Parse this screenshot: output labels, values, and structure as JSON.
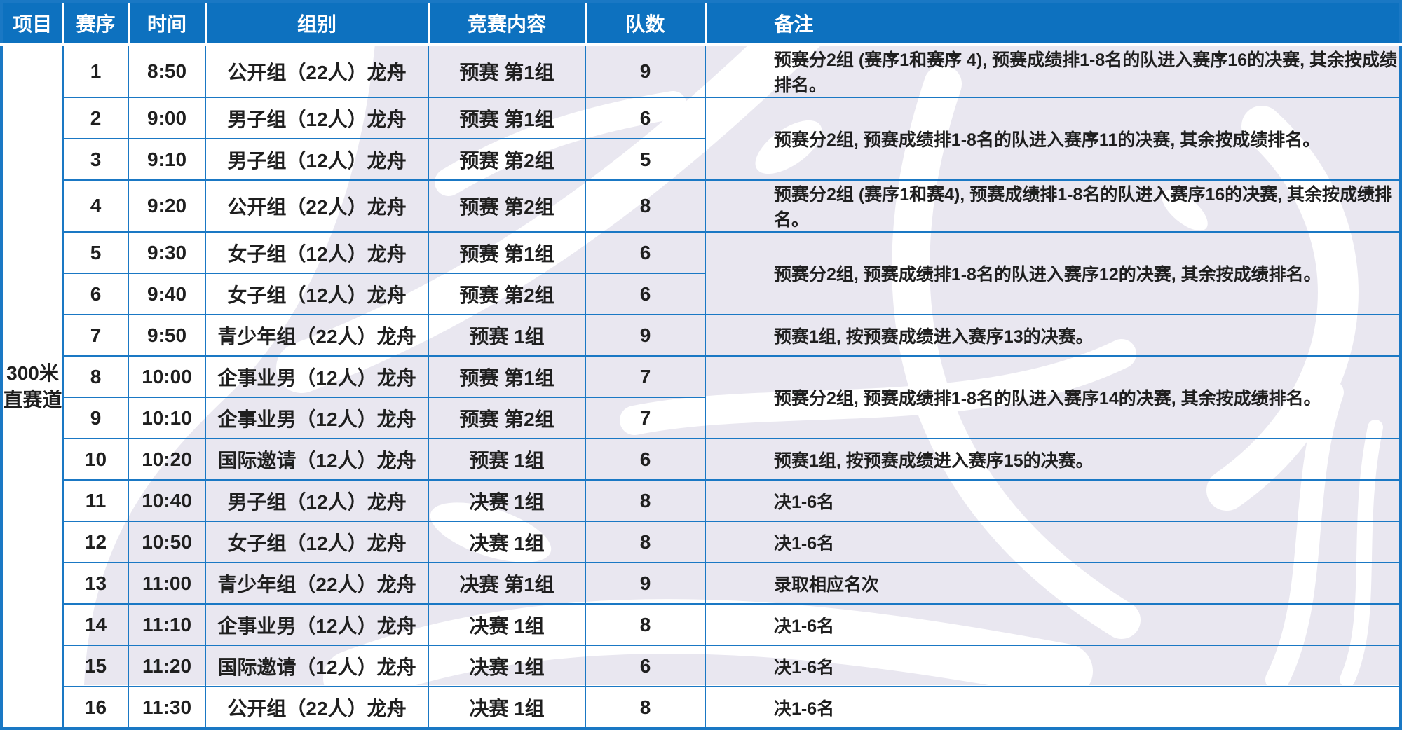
{
  "table": {
    "columns": [
      {
        "label": "项目"
      },
      {
        "label": "赛序"
      },
      {
        "label": "时间"
      },
      {
        "label": "组别"
      },
      {
        "label": "竞赛内容"
      },
      {
        "label": "队数"
      },
      {
        "label": "备注"
      }
    ],
    "project": {
      "line1": "300米",
      "line2": "直赛道"
    },
    "rows": [
      {
        "seq": "1",
        "time": "8:50",
        "group": "公开组（22人）龙舟",
        "content": "预赛 第1组",
        "teams": "9",
        "remark": "预赛分2组 (赛序1和赛序 4), 预赛成绩排1-8名的队进入赛序16的决赛, 其余按成绩排名。",
        "remark_rowspan": 1
      },
      {
        "seq": "2",
        "time": "9:00",
        "group": "男子组（12人）龙舟",
        "content": "预赛 第1组",
        "teams": "6",
        "remark": "预赛分2组, 预赛成绩排1-8名的队进入赛序11的决赛, 其余按成绩排名。",
        "remark_rowspan": 2
      },
      {
        "seq": "3",
        "time": "9:10",
        "group": "男子组（12人）龙舟",
        "content": "预赛 第2组",
        "teams": "5",
        "remark": null
      },
      {
        "seq": "4",
        "time": "9:20",
        "group": "公开组（22人）龙舟",
        "content": "预赛 第2组",
        "teams": "8",
        "remark": "预赛分2组 (赛序1和赛4), 预赛成绩排1-8名的队进入赛序16的决赛, 其余按成绩排名。",
        "remark_rowspan": 1
      },
      {
        "seq": "5",
        "time": "9:30",
        "group": "女子组（12人）龙舟",
        "content": "预赛 第1组",
        "teams": "6",
        "remark": "预赛分2组, 预赛成绩排1-8名的队进入赛序12的决赛, 其余按成绩排名。",
        "remark_rowspan": 2
      },
      {
        "seq": "6",
        "time": "9:40",
        "group": "女子组（12人）龙舟",
        "content": "预赛 第2组",
        "teams": "6",
        "remark": null
      },
      {
        "seq": "7",
        "time": "9:50",
        "group": "青少年组（22人）龙舟",
        "content": "预赛 1组",
        "teams": "9",
        "remark": "预赛1组, 按预赛成绩进入赛序13的决赛。",
        "remark_rowspan": 1
      },
      {
        "seq": "8",
        "time": "10:00",
        "group": "企事业男（12人）龙舟",
        "content": "预赛 第1组",
        "teams": "7",
        "remark": "预赛分2组, 预赛成绩排1-8名的队进入赛序14的决赛, 其余按成绩排名。",
        "remark_rowspan": 2
      },
      {
        "seq": "9",
        "time": "10:10",
        "group": "企事业男（12人）龙舟",
        "content": "预赛 第2组",
        "teams": "7",
        "remark": null
      },
      {
        "seq": "10",
        "time": "10:20",
        "group": "国际邀请（12人）龙舟",
        "content": "预赛 1组",
        "teams": "6",
        "remark": "预赛1组, 按预赛成绩进入赛序15的决赛。",
        "remark_rowspan": 1
      },
      {
        "seq": "11",
        "time": "10:40",
        "group": "男子组（12人）龙舟",
        "content": "决赛 1组",
        "teams": "8",
        "remark": "决1-6名",
        "remark_rowspan": 1
      },
      {
        "seq": "12",
        "time": "10:50",
        "group": "女子组（12人）龙舟",
        "content": "决赛 1组",
        "teams": "8",
        "remark": "决1-6名",
        "remark_rowspan": 1
      },
      {
        "seq": "13",
        "time": "11:00",
        "group": "青少年组（22人）龙舟",
        "content": "决赛 第1组",
        "teams": "9",
        "remark": "录取相应名次",
        "remark_rowspan": 1
      },
      {
        "seq": "14",
        "time": "11:10",
        "group": "企事业男（12人）龙舟",
        "content": "决赛 1组",
        "teams": "8",
        "remark": "决1-6名",
        "remark_rowspan": 1
      },
      {
        "seq": "15",
        "time": "11:20",
        "group": "国际邀请（12人）龙舟",
        "content": "决赛 1组",
        "teams": "6",
        "remark": "决1-6名",
        "remark_rowspan": 1
      },
      {
        "seq": "16",
        "time": "11:30",
        "group": "公开组（22人）龙舟",
        "content": "决赛 1组",
        "teams": "8",
        "remark": "决1-6名",
        "remark_rowspan": 1
      }
    ]
  },
  "colors": {
    "header_bg": "#0d71bf",
    "border_blue": "#1a78c4",
    "body_text": "#1f1f1f",
    "watermark_lavender": "#e9e7f0"
  }
}
